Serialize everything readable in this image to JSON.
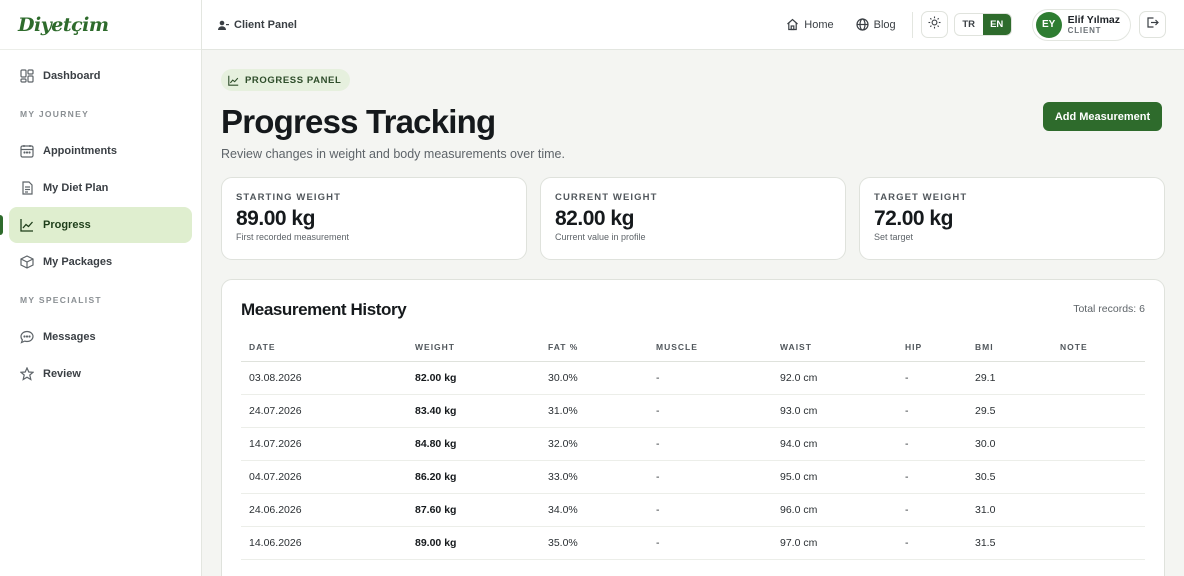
{
  "brand": {
    "logo_text": "Diyetçim"
  },
  "header": {
    "client_panel": "Client Panel",
    "home": "Home",
    "blog": "Blog",
    "lang_tr": "TR",
    "lang_en": "EN",
    "user_initials": "EY",
    "user_name": "Elif Yılmaz",
    "user_role": "CLIENT"
  },
  "sidebar": {
    "dashboard": "Dashboard",
    "section_journey": "MY JOURNEY",
    "appointments": "Appointments",
    "diet_plan": "My Diet Plan",
    "progress": "Progress",
    "packages": "My Packages",
    "section_specialist": "MY SPECIALIST",
    "messages": "Messages",
    "review": "Review"
  },
  "page": {
    "badge": "PROGRESS PANEL",
    "title": "Progress Tracking",
    "subtitle": "Review changes in weight and body measurements over time.",
    "add_button": "Add Measurement"
  },
  "stats": [
    {
      "label": "STARTING WEIGHT",
      "value": "89.00 kg",
      "sub": "First recorded measurement"
    },
    {
      "label": "CURRENT WEIGHT",
      "value": "82.00 kg",
      "sub": "Current value in profile"
    },
    {
      "label": "TARGET WEIGHT",
      "value": "72.00 kg",
      "sub": "Set target"
    }
  ],
  "history": {
    "title": "Measurement History",
    "total": "Total records: 6",
    "columns": [
      "DATE",
      "WEIGHT",
      "FAT %",
      "MUSCLE",
      "WAIST",
      "HIP",
      "BMI",
      "NOTE"
    ],
    "rows": [
      [
        "03.08.2026",
        "82.00 kg",
        "30.0%",
        "-",
        "92.0 cm",
        "-",
        "29.1",
        ""
      ],
      [
        "24.07.2026",
        "83.40 kg",
        "31.0%",
        "-",
        "93.0 cm",
        "-",
        "29.5",
        ""
      ],
      [
        "14.07.2026",
        "84.80 kg",
        "32.0%",
        "-",
        "94.0 cm",
        "-",
        "30.0",
        ""
      ],
      [
        "04.07.2026",
        "86.20 kg",
        "33.0%",
        "-",
        "95.0 cm",
        "-",
        "30.5",
        ""
      ],
      [
        "24.06.2026",
        "87.60 kg",
        "34.0%",
        "-",
        "96.0 cm",
        "-",
        "31.0",
        ""
      ],
      [
        "14.06.2026",
        "89.00 kg",
        "35.0%",
        "-",
        "97.0 cm",
        "-",
        "31.5",
        ""
      ]
    ]
  },
  "colors": {
    "accent": "#2e6b2c",
    "active_bg": "#dfeecf",
    "page_bg": "#f4f5f2"
  }
}
